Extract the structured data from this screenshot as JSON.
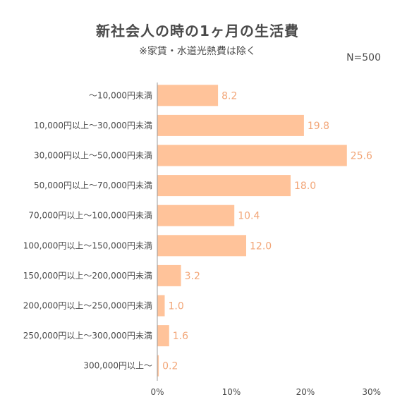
{
  "title": "新社会人の時の1ヶ月の生活費",
  "subtitle": "※家賃・水道光熱費は除く",
  "n_label": "N=500",
  "colors": {
    "bar": "#ffc39a",
    "value_text": "#f2a678",
    "axis": "#9a9a9a",
    "grid": "#dddddd"
  },
  "chart_data": {
    "type": "bar",
    "orientation": "horizontal",
    "categories": [
      "～10,000円未満",
      "10,000円以上～30,000円未満",
      "30,000円以上～50,000円未満",
      "50,000円以上～70,000円未満",
      "70,000円以上～100,000円未満",
      "100,000円以上～150,000円未満",
      "150,000円以上～200,000円未満",
      "200,000円以上～250,000円未満",
      "250,000円以上～300,000円未満",
      "300,000円以上～"
    ],
    "values": [
      8.2,
      19.8,
      25.6,
      18.0,
      10.4,
      12.0,
      3.2,
      1.0,
      1.6,
      0.2
    ],
    "value_labels": [
      "8.2",
      "19.8",
      "25.6",
      "18.0",
      "10.4",
      "12.0",
      "3.2",
      "1.0",
      "1.6",
      "0.2"
    ],
    "xlim": [
      0,
      30
    ],
    "xticks": [
      0,
      10,
      20,
      30
    ],
    "xtick_labels": [
      "0%",
      "10%",
      "20%",
      "30%"
    ],
    "grid": false,
    "legend": "none"
  }
}
